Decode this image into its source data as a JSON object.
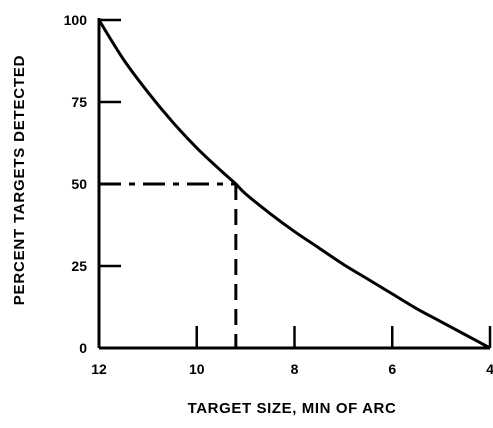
{
  "chart_data": {
    "type": "line",
    "title": "",
    "xlabel": "TARGET SIZE, MIN OF ARC",
    "ylabel": "PERCENT TARGETS DETECTED",
    "xlim": [
      12,
      4
    ],
    "ylim": [
      0,
      100
    ],
    "x_axis_reversed": true,
    "x_ticks": [
      12,
      10,
      8,
      6,
      4
    ],
    "x_tick_labels": [
      "12",
      "10",
      "8",
      "6",
      "4"
    ],
    "y_ticks": [
      0,
      25,
      50,
      75,
      100
    ],
    "y_tick_labels": [
      "0",
      "25",
      "50",
      "75",
      "100"
    ],
    "grid": false,
    "legend": "none",
    "series": [
      {
        "x": [
          12,
          11.5,
          11,
          10.5,
          10,
          9.5,
          9.2,
          9,
          8.5,
          8,
          7.5,
          7,
          6.5,
          6,
          5.5,
          5,
          4.5,
          4
        ],
        "y": [
          100,
          88,
          78,
          69,
          61,
          54,
          50,
          47,
          41,
          35.5,
          30.5,
          25.5,
          21,
          16.5,
          12,
          8,
          4,
          0
        ]
      }
    ],
    "reference_lines": {
      "x": 9.2,
      "y": 50,
      "style": "dashed"
    },
    "colors": {
      "line": "#000000",
      "axis": "#000000"
    }
  }
}
